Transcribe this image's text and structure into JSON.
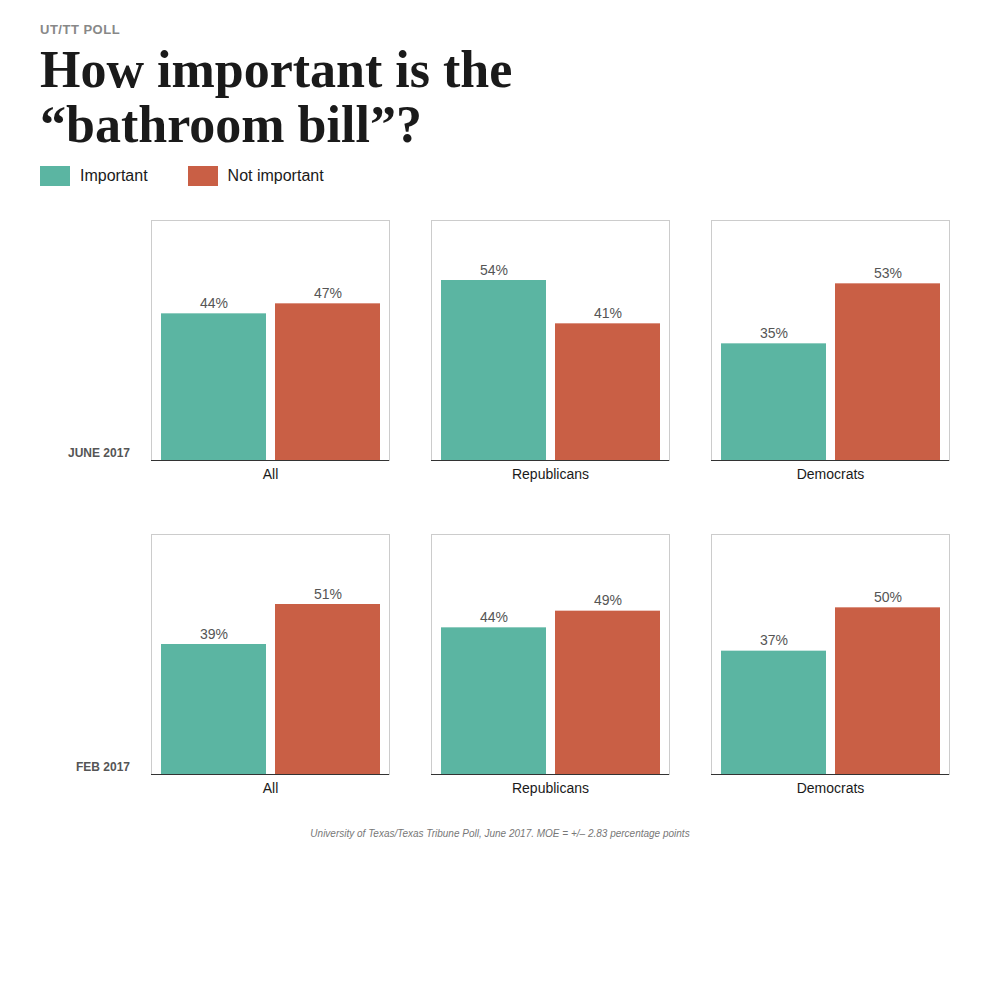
{
  "title": "How important is the\n“bathroom bill”?",
  "subtitle": "UT/TT POLL",
  "annotations": [
    "University of Texas/Texas Tribune Poll, June 2017. MOE = +/– 2.83 percentage points"
  ],
  "chart_data": [
    {
      "type": "bar",
      "title": "JUNE 2017",
      "categories": [
        "All",
        "Republicans",
        "Democrats"
      ],
      "series": [
        {
          "name": "Important",
          "color": "#5BB5A2",
          "values": [
            44,
            54,
            35
          ],
          "value_labels": [
            "44%",
            "54%",
            "35%"
          ]
        },
        {
          "name": "Not important",
          "color": "#C95F45",
          "values": [
            47,
            41,
            53
          ],
          "value_labels": [
            "47%",
            "41%",
            "53%"
          ]
        }
      ],
      "ylim": [
        0,
        72
      ],
      "tick_labels": "x",
      "data_labels": true,
      "grid": false,
      "legend": "upper left"
    },
    {
      "type": "bar",
      "title": "FEB 2017",
      "categories": [
        "All",
        "Republicans",
        "Democrats"
      ],
      "series": [
        {
          "name": "Important",
          "color": "#5BB5A2",
          "values": [
            39,
            44,
            37
          ],
          "value_labels": [
            "39%",
            "44%",
            "37%"
          ]
        },
        {
          "name": "Not important",
          "color": "#C95F45",
          "values": [
            51,
            49,
            50
          ],
          "value_labels": [
            "51%",
            "49%",
            "50%"
          ]
        }
      ],
      "ylim": [
        0,
        72
      ],
      "tick_labels": "x",
      "data_labels": true,
      "grid": false
    }
  ]
}
